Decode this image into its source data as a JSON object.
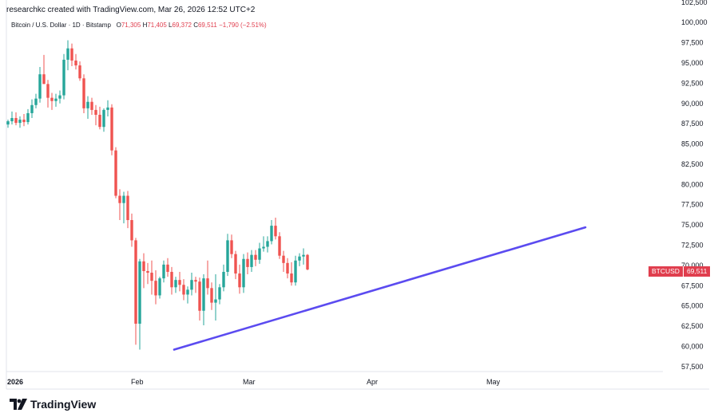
{
  "header": {
    "created_by": "researchkc created with TradingView.com, Mar 26, 2026 12:52 UTC+2"
  },
  "symbol": {
    "name": "Bitcoin / U.S. Dollar · 1D · Bitstamp",
    "o_label": "O",
    "o": "71,305",
    "h_label": "H",
    "h": "71,405",
    "l_label": "L",
    "l": "69,372",
    "c_label": "C",
    "c": "69,511",
    "change": "−1,790 (−2.51%)"
  },
  "price_badge": {
    "symbol": "BTCUSD",
    "value": "69,511"
  },
  "footer": {
    "brand": "TradingView"
  },
  "colors": {
    "up": "#26a69a",
    "down": "#ef5350",
    "trendline": "#5b4bf0",
    "badge": "#e03e4e"
  },
  "chart_data": {
    "type": "candlestick",
    "y_ticks": [
      "102,500",
      "100,000",
      "97,500",
      "95,000",
      "92,500",
      "90,000",
      "87,500",
      "85,000",
      "82,500",
      "80,000",
      "77,500",
      "75,000",
      "72,500",
      "70,000",
      "67,500",
      "65,000",
      "62,500",
      "60,000",
      "57,500"
    ],
    "x_ticks": [
      "2026",
      "Feb",
      "Mar",
      "Apr",
      "May"
    ],
    "ylim": [
      56500,
      102500
    ],
    "x_tick_days": [
      1,
      32,
      60,
      91,
      121
    ],
    "start_date": "2025-12-26",
    "candles": [
      [
        87400,
        88000,
        87000,
        87800
      ],
      [
        87800,
        89000,
        87400,
        88200
      ],
      [
        88200,
        88900,
        87300,
        87600
      ],
      [
        87600,
        88400,
        87000,
        88000
      ],
      [
        88000,
        88700,
        87200,
        87700
      ],
      [
        87700,
        89300,
        87400,
        88800
      ],
      [
        88800,
        90500,
        88200,
        89800
      ],
      [
        89800,
        91200,
        89400,
        90600
      ],
      [
        90600,
        94500,
        90100,
        93600
      ],
      [
        93600,
        96000,
        92800,
        92400
      ],
      [
        92400,
        92900,
        89500,
        90700
      ],
      [
        90700,
        91300,
        89200,
        90300
      ],
      [
        90300,
        91200,
        89600,
        90600
      ],
      [
        90600,
        91600,
        90000,
        91000
      ],
      [
        91000,
        96100,
        90500,
        95400
      ],
      [
        95400,
        97800,
        94100,
        96800
      ],
      [
        96800,
        97400,
        94600,
        95300
      ],
      [
        95300,
        96100,
        94200,
        94700
      ],
      [
        94700,
        95200,
        92800,
        93100
      ],
      [
        93100,
        93600,
        88800,
        89400
      ],
      [
        89400,
        90900,
        88100,
        90200
      ],
      [
        90200,
        90700,
        88600,
        89200
      ],
      [
        89200,
        89800,
        87300,
        88600
      ],
      [
        88600,
        89600,
        86800,
        87100
      ],
      [
        87100,
        89400,
        86500,
        89200
      ],
      [
        89200,
        90400,
        88400,
        89500
      ],
      [
        89500,
        89900,
        83600,
        84200
      ],
      [
        84200,
        84600,
        78300,
        78600
      ],
      [
        78600,
        79400,
        75600,
        77700
      ],
      [
        77700,
        79100,
        75200,
        78600
      ],
      [
        78600,
        79200,
        74600,
        75600
      ],
      [
        75600,
        76400,
        72300,
        73100
      ],
      [
        73100,
        73400,
        60200,
        62800
      ],
      [
        62800,
        70800,
        59600,
        70500
      ],
      [
        70500,
        71500,
        67200,
        69300
      ],
      [
        69300,
        70300,
        67700,
        69100
      ],
      [
        69100,
        70600,
        66400,
        68100
      ],
      [
        68100,
        69400,
        65200,
        66300
      ],
      [
        66300,
        68600,
        65900,
        68400
      ],
      [
        68400,
        70600,
        67900,
        70100
      ],
      [
        70100,
        70900,
        68600,
        69200
      ],
      [
        69200,
        69800,
        66400,
        67300
      ],
      [
        67300,
        68600,
        66600,
        68200
      ],
      [
        68200,
        69200,
        66800,
        67600
      ],
      [
        67600,
        68300,
        65700,
        66400
      ],
      [
        66400,
        67400,
        65300,
        67000
      ],
      [
        67000,
        69100,
        66300,
        68200
      ],
      [
        68200,
        68600,
        66600,
        68000
      ],
      [
        68000,
        68500,
        63200,
        64400
      ],
      [
        64400,
        68900,
        62600,
        68400
      ],
      [
        68400,
        70600,
        66400,
        67200
      ],
      [
        67200,
        67900,
        64500,
        65400
      ],
      [
        65400,
        68900,
        63200,
        65800
      ],
      [
        65800,
        67700,
        65200,
        67300
      ],
      [
        67300,
        70100,
        66800,
        69200
      ],
      [
        69200,
        73900,
        68700,
        73100
      ],
      [
        73100,
        73800,
        70900,
        71400
      ],
      [
        71400,
        71800,
        68300,
        69000
      ],
      [
        69000,
        70100,
        66500,
        67300
      ],
      [
        67300,
        71400,
        66600,
        70800
      ],
      [
        70800,
        71600,
        68900,
        69800
      ],
      [
        69800,
        71900,
        69200,
        71300
      ],
      [
        71300,
        71900,
        69900,
        70700
      ],
      [
        70700,
        72800,
        70200,
        72100
      ],
      [
        72100,
        73600,
        71700,
        72300
      ],
      [
        72300,
        73600,
        71600,
        73000
      ],
      [
        73000,
        75600,
        72600,
        74900
      ],
      [
        74900,
        75900,
        73200,
        73600
      ],
      [
        73600,
        74100,
        70800,
        71200
      ],
      [
        71200,
        71800,
        69200,
        70300
      ],
      [
        70300,
        70900,
        68400,
        69000
      ],
      [
        69000,
        70400,
        67500,
        67900
      ],
      [
        67900,
        71200,
        67500,
        70600
      ],
      [
        70600,
        71500,
        69900,
        71100
      ],
      [
        71100,
        72100,
        70100,
        71300
      ],
      [
        71300,
        71400,
        69400,
        69500
      ]
    ],
    "trendline": {
      "from": [
        "2026-02-06",
        59600
      ],
      "to": [
        "2026-05-20",
        74700
      ]
    }
  }
}
